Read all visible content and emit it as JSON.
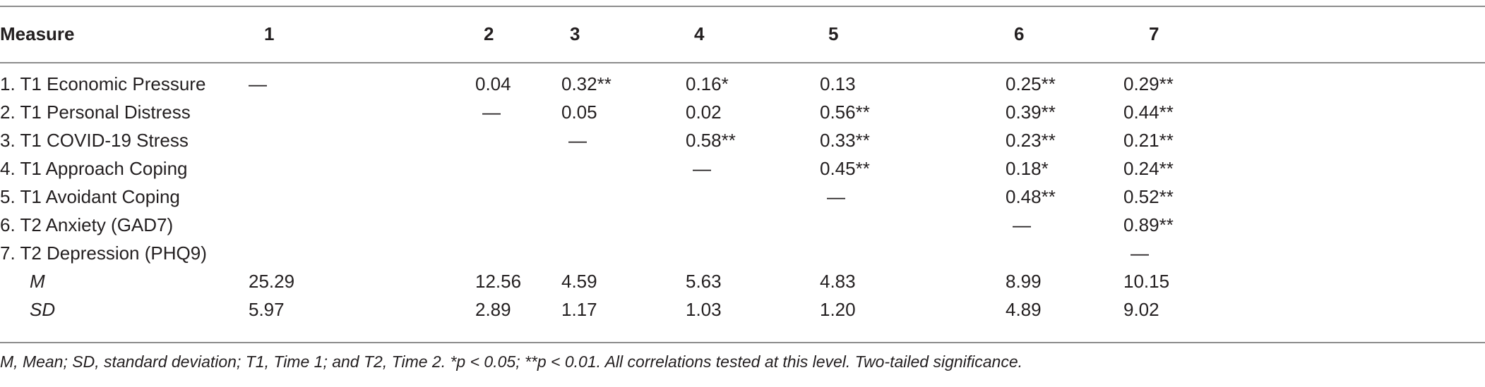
{
  "table": {
    "headers": [
      "Measure",
      "1",
      "2",
      "3",
      "4",
      "5",
      "6",
      "7"
    ],
    "rows": [
      {
        "label": "1. T1 Economic Pressure",
        "cells": [
          "—",
          "0.04",
          "0.32**",
          "0.16*",
          "0.13",
          "0.25**",
          "0.29**"
        ]
      },
      {
        "label": "2. T1 Personal Distress",
        "cells": [
          "",
          "—",
          "0.05",
          "0.02",
          "0.56**",
          "0.39**",
          "0.44**"
        ]
      },
      {
        "label": "3. T1 COVID-19 Stress",
        "cells": [
          "",
          "",
          "—",
          "0.58**",
          "0.33**",
          "0.23**",
          "0.21**"
        ]
      },
      {
        "label": "4. T1 Approach Coping",
        "cells": [
          "",
          "",
          "",
          "—",
          "0.45**",
          "0.18*",
          "0.24**"
        ]
      },
      {
        "label": "5. T1 Avoidant Coping",
        "cells": [
          "",
          "",
          "",
          "",
          "—",
          "0.48**",
          "0.52**"
        ]
      },
      {
        "label": "6. T2 Anxiety (GAD7)",
        "cells": [
          "",
          "",
          "",
          "",
          "",
          "—",
          "0.89**"
        ]
      },
      {
        "label": "7. T2 Depression (PHQ9)",
        "cells": [
          "",
          "",
          "",
          "",
          "",
          "",
          "—"
        ]
      },
      {
        "label": "M",
        "italic": true,
        "cells": [
          "25.29",
          "12.56",
          "4.59",
          "5.63",
          "4.83",
          "8.99",
          "10.15"
        ]
      },
      {
        "label": "SD",
        "italic": true,
        "cells": [
          "5.97",
          "2.89",
          "1.17",
          "1.03",
          "1.20",
          "4.89",
          "9.02"
        ]
      }
    ]
  },
  "footnote": "M, Mean; SD, standard deviation; T1, Time 1; and T2, Time 2. *p < 0.05; **p < 0.01. All correlations tested at this level. Two-tailed significance."
}
